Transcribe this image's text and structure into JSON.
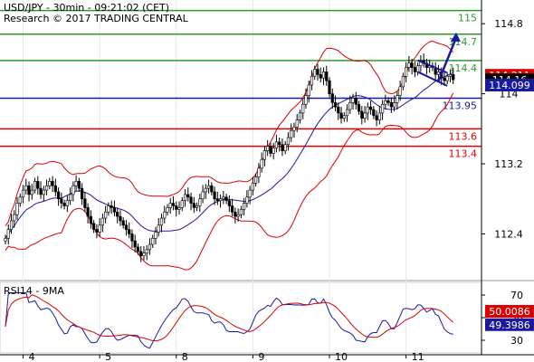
{
  "header": {
    "title": "USD/JPY - 30min - 09:21:02 (CET)",
    "subtitle": "Research © 2017 TRADING CENTRAL"
  },
  "chart_data": [
    {
      "name": "price",
      "type": "candlestick",
      "y_ticks": [
        112.4,
        113.2,
        114.0,
        114.8
      ],
      "y_tick_labels": [
        "112.4",
        "113.2",
        "114",
        "114.8"
      ],
      "ylim": [
        111.95,
        115.05
      ],
      "levels": [
        {
          "value": 114.95,
          "label": "115",
          "color": "#2e9a2e"
        },
        {
          "value": 114.68,
          "label": "114.7",
          "color": "#2e9a2e"
        },
        {
          "value": 114.38,
          "label": "114.4",
          "color": "#2e9a2e"
        },
        {
          "value": 113.95,
          "label": "113.95",
          "color": "#1a1aa0"
        },
        {
          "value": 113.6,
          "label": "113.6",
          "color": "#dd0000"
        },
        {
          "value": 113.4,
          "label": "113.4",
          "color": "#dd0000"
        }
      ],
      "price_tags": [
        {
          "value": 114.211,
          "label": "114.211",
          "bg": "#dd0000",
          "fg": "#ffffff"
        },
        {
          "value": 114.16,
          "label": "114.16",
          "bg": "#000000",
          "fg": "#ffffff"
        },
        {
          "value": 114.099,
          "label": "114.099",
          "bg": "#1a1aa0",
          "fg": "#ffffff"
        }
      ],
      "x_ticks": [
        "4",
        "5",
        "8",
        "9",
        "10",
        "11"
      ],
      "close": [
        112.35,
        112.45,
        112.55,
        112.62,
        112.75,
        112.82,
        112.9,
        112.95,
        112.85,
        112.9,
        113.0,
        112.92,
        112.85,
        112.9,
        112.95,
        113.0,
        112.95,
        112.88,
        112.8,
        112.75,
        112.72,
        112.78,
        112.85,
        112.95,
        113.0,
        112.92,
        112.8,
        112.7,
        112.6,
        112.52,
        112.45,
        112.42,
        112.5,
        112.58,
        112.65,
        112.72,
        112.7,
        112.65,
        112.6,
        112.55,
        112.5,
        112.45,
        112.4,
        112.32,
        112.25,
        112.2,
        112.15,
        112.18,
        112.22,
        112.28,
        112.35,
        112.42,
        112.5,
        112.58,
        112.65,
        112.7,
        112.75,
        112.72,
        112.68,
        112.7,
        112.78,
        112.85,
        112.82,
        112.75,
        112.7,
        112.72,
        112.8,
        112.88,
        112.92,
        112.95,
        112.88,
        112.8,
        112.78,
        112.8,
        112.82,
        112.78,
        112.72,
        112.65,
        112.6,
        112.62,
        112.68,
        112.75,
        112.82,
        112.9,
        112.98,
        113.05,
        113.15,
        113.25,
        113.35,
        113.4,
        113.32,
        113.38,
        113.45,
        113.42,
        113.35,
        113.42,
        113.5,
        113.58,
        113.62,
        113.7,
        113.78,
        113.88,
        113.98,
        114.1,
        114.2,
        114.28,
        114.22,
        114.18,
        114.25,
        114.15,
        114.0,
        113.9,
        113.85,
        113.78,
        113.72,
        113.75,
        113.82,
        113.9,
        113.95,
        113.88,
        113.8,
        113.72,
        113.78,
        113.85,
        113.82,
        113.75,
        113.7,
        113.78,
        113.88,
        113.92,
        113.9,
        113.85,
        113.9,
        113.98,
        114.08,
        114.2,
        114.3,
        114.35,
        114.3,
        114.25,
        114.32,
        114.38,
        114.35,
        114.3,
        114.32,
        114.3,
        114.22,
        114.25,
        114.18,
        114.15,
        114.2,
        114.22,
        114.16
      ],
      "arrow": {
        "from": [
          147,
          114.14
        ],
        "to": [
          153,
          114.7
        ]
      },
      "flag_channel": [
        {
          "from": [
            140,
            114.38
          ],
          "to": [
            150,
            114.24
          ]
        },
        {
          "from": [
            140,
            114.25
          ],
          "to": [
            150,
            114.09
          ]
        }
      ]
    },
    {
      "name": "rsi",
      "type": "line",
      "title": "RSI14 - 9MA",
      "y_ticks": [
        30,
        50,
        70
      ],
      "y_tick_labels": [
        "30",
        "50",
        "70"
      ],
      "ylim": [
        22,
        78
      ],
      "price_tags": [
        {
          "value": 50.0086,
          "label": "50.0086",
          "bg": "#dd0000",
          "fg": "#ffffff"
        },
        {
          "value": 49.3986,
          "label": "49.3986",
          "bg": "#1a1aa0",
          "fg": "#ffffff"
        }
      ]
    }
  ],
  "colors": {
    "up_candle": "#ffffff",
    "down_candle": "#000000",
    "bollinger": "#dd0000",
    "sma": "#1a1aa0",
    "rsi": "#1a1aa0",
    "rsi_ma": "#dd0000"
  }
}
